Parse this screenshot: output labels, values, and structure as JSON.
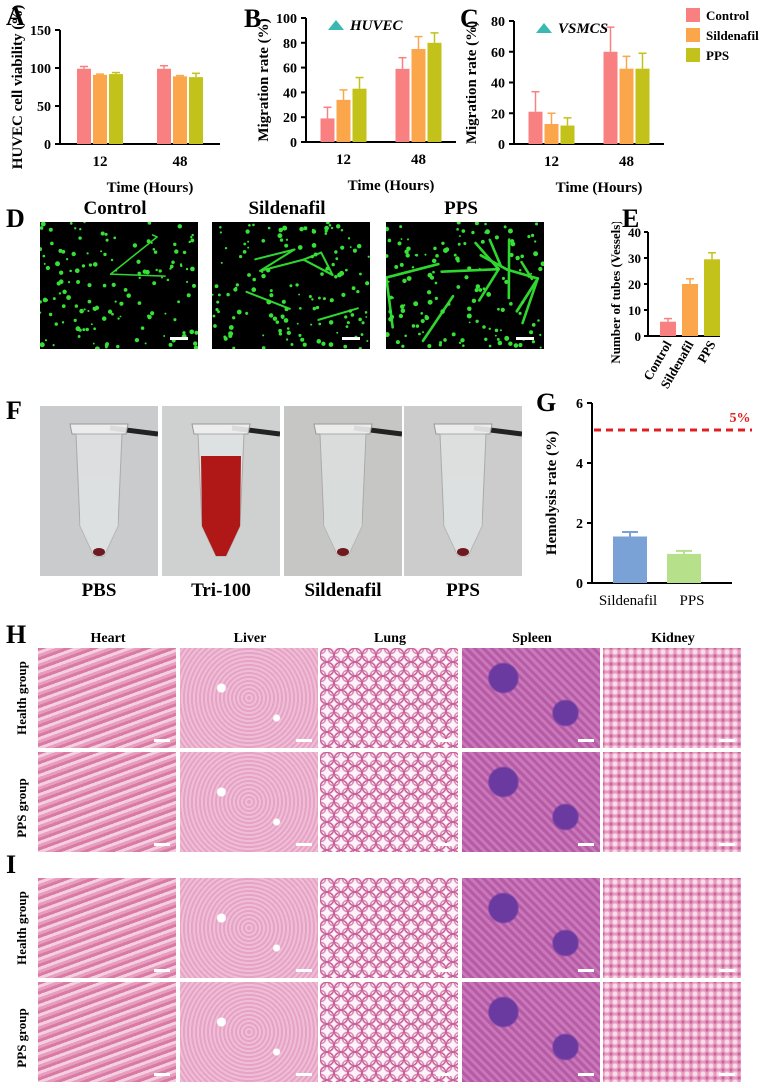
{
  "panels": {
    "A": "A",
    "B": "B",
    "C": "C",
    "D": "D",
    "E": "E",
    "F": "F",
    "G": "G",
    "H": "H",
    "I": "I"
  },
  "colors": {
    "control": "#f98080",
    "sildenafil": "#fba64a",
    "pps": "#c2c21a",
    "sild_hemo": "#7aa2d6",
    "pps_hemo": "#b7e08a",
    "threshold": "#e02020",
    "marker": "#3bb8b0"
  },
  "legend": [
    {
      "label": "Control",
      "color": "#f98080"
    },
    {
      "label": "Sildenafil",
      "color": "#fba64a"
    },
    {
      "label": "PPS",
      "color": "#c2c21a"
    }
  ],
  "chart_data": [
    {
      "id": "A",
      "type": "bar",
      "categories": [
        "12",
        "48"
      ],
      "series": [
        {
          "name": "Control",
          "values": [
            99,
            99
          ],
          "err": [
            3,
            4
          ]
        },
        {
          "name": "Sildenafil",
          "values": [
            91,
            89
          ],
          "err": [
            1,
            1
          ]
        },
        {
          "name": "PPS",
          "values": [
            92,
            88
          ],
          "err": [
            2,
            5
          ]
        }
      ],
      "xlabel": "Time (Hours)",
      "ylabel": "HUVEC cell viability (%)",
      "ylim": [
        0,
        150
      ],
      "yticks": [
        "0",
        "50",
        "100",
        "150"
      ],
      "grid": false
    },
    {
      "id": "B",
      "type": "bar",
      "categories": [
        "12",
        "48"
      ],
      "annotation": "HUVEC",
      "series": [
        {
          "name": "Control",
          "values": [
            19,
            59
          ],
          "err": [
            9,
            9
          ]
        },
        {
          "name": "Sildenafil",
          "values": [
            34,
            75
          ],
          "err": [
            8,
            10
          ]
        },
        {
          "name": "PPS",
          "values": [
            43,
            80
          ],
          "err": [
            9,
            8
          ]
        }
      ],
      "xlabel": "Time (Hours)",
      "ylabel": "Migration rate (%)",
      "ylim": [
        0,
        100
      ],
      "yticks": [
        "0",
        "20",
        "40",
        "60",
        "80",
        "100"
      ],
      "grid": false
    },
    {
      "id": "C",
      "type": "bar",
      "categories": [
        "12",
        "48"
      ],
      "annotation": "VSMCS",
      "series": [
        {
          "name": "Control",
          "values": [
            21,
            60
          ],
          "err": [
            13,
            16
          ]
        },
        {
          "name": "Sildenafil",
          "values": [
            13,
            49
          ],
          "err": [
            7,
            8
          ]
        },
        {
          "name": "PPS",
          "values": [
            12,
            49
          ],
          "err": [
            5,
            10
          ]
        }
      ],
      "xlabel": "Time (Hours)",
      "ylabel": "Migration rate (%)",
      "ylim": [
        0,
        80
      ],
      "yticks": [
        "0",
        "20",
        "40",
        "60",
        "80"
      ],
      "legend": "top-right",
      "grid": false
    },
    {
      "id": "E",
      "type": "bar",
      "categories": [
        "Control",
        "Sildenafil",
        "PPS"
      ],
      "values": [
        5.5,
        20,
        29.5
      ],
      "err": [
        1.2,
        2,
        2.5
      ],
      "ylabel": "Number of tubes (Vessels)",
      "ylim": [
        0,
        40
      ],
      "yticks": [
        "0",
        "10",
        "20",
        "30",
        "40"
      ],
      "grid": false
    },
    {
      "id": "G",
      "type": "bar",
      "categories": [
        "Sildenafil",
        "PPS"
      ],
      "values": [
        1.55,
        0.97
      ],
      "err": [
        0.15,
        0.1
      ],
      "ylabel": "Hemolysis rate (%)",
      "ylim": [
        0,
        6
      ],
      "yticks": [
        "0",
        "2",
        "4",
        "6"
      ],
      "threshold": 5.1,
      "threshold_label": "5%",
      "grid": false
    }
  ],
  "tube_formation": {
    "titles": [
      "Control",
      "Sildenafil",
      "PPS"
    ]
  },
  "hemolysis_tubes": {
    "labels": [
      "PBS",
      "Tri-100",
      "Sildenafil",
      "PPS"
    ]
  },
  "histology": {
    "columns": [
      "Heart",
      "Liver",
      "Lung",
      "Spleen",
      "Kidney"
    ],
    "rows_H": [
      "Health group",
      "PPS group"
    ],
    "rows_I": [
      "Health group",
      "PPS group"
    ]
  }
}
